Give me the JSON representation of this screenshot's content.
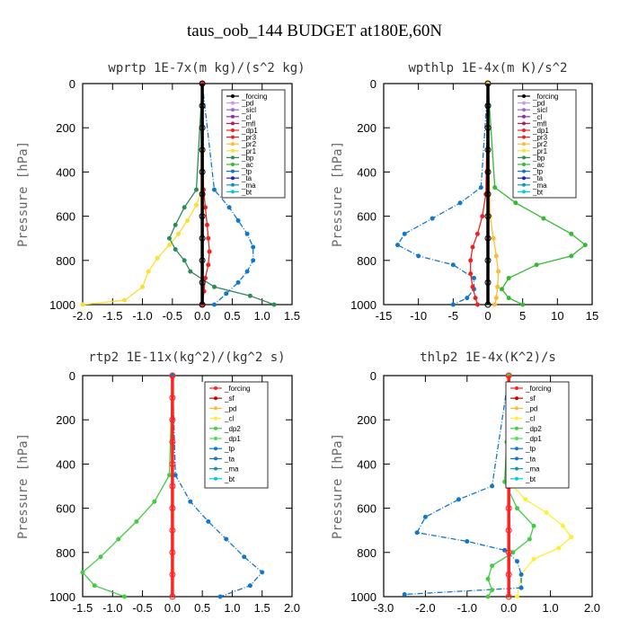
{
  "figure": {
    "title": "taus_oob_144  BUDGET at180E,60N"
  },
  "colors": {
    "forcing": "#000000",
    "pd": "#cc99dd",
    "sicl": "#9966cc",
    "cl": "#8833aa",
    "mfl": "#aa2266",
    "dp1": "#ee2222",
    "pr3": "#ee2222",
    "pr2": "#ffbb33",
    "pr1": "#ffdd33",
    "bp": "#2e8b57",
    "ac": "#33bb33",
    "tp": "#1177cc",
    "ta": "#2222cc",
    "ma": "#1199aa",
    "bt": "#00ccdd",
    "rtp2_forcing": "#ff2222",
    "rtp2_sf": "#cc0000",
    "rtp2_pd": "#ffbb33",
    "rtp2_cl": "#ffee33",
    "dp2": "#44cc44",
    "rtp2_dp1": "#55dd55",
    "rtp2_tp": "#1177cc",
    "rtp2_ta": "#1177cc",
    "rtp2_ma": "#1199aa",
    "rtp2_bt": "#00ccdd"
  },
  "chart_data": [
    {
      "type": "line",
      "title": "wprtp  1E-7x(m kg)/(s^2 kg)",
      "ylabel": "Pressure [hPa]",
      "xlim": [
        -2.0,
        1.5
      ],
      "ylim": [
        1000,
        0
      ],
      "xticks": [
        "-2.0",
        "-1.5",
        "-1.0",
        "-0.5",
        "0.0",
        "0.5",
        "1.0",
        "1.5"
      ],
      "yticks": [
        "0",
        "200",
        "400",
        "600",
        "800",
        "1000"
      ],
      "legend": [
        "_forcing",
        "_pd",
        "_sicl",
        "_cl",
        "_mfl",
        "_dp1",
        "_pr3",
        "_pr2",
        "_pr1",
        "_bp",
        "_ac",
        "_tp",
        "_ta",
        "_ma",
        "_bt"
      ],
      "legend_position": "top-right",
      "series": [
        {
          "key": "pr1",
          "x": [
            0,
            0,
            -0.1,
            -0.25,
            -0.4,
            -0.55,
            -0.75,
            -0.9,
            -1.0,
            -1.3,
            -2.0
          ],
          "y": [
            0,
            480,
            550,
            620,
            680,
            730,
            790,
            850,
            920,
            980,
            1000
          ]
        },
        {
          "key": "bp",
          "x": [
            0,
            -0.1,
            -0.3,
            -0.45,
            -0.55,
            -0.45,
            -0.3,
            -0.2,
            0.2,
            0.8,
            1.2
          ],
          "y": [
            0,
            480,
            560,
            640,
            700,
            750,
            800,
            850,
            920,
            960,
            1000
          ]
        },
        {
          "key": "tp",
          "x": [
            0,
            0.2,
            0.45,
            0.6,
            0.75,
            0.85,
            0.85,
            0.75,
            0.6,
            0.4,
            0.2
          ],
          "y": [
            0,
            480,
            560,
            620,
            680,
            740,
            800,
            850,
            900,
            950,
            1000
          ]
        },
        {
          "key": "dp1",
          "x": [
            0,
            0.02,
            0.05,
            0.08,
            0.1,
            0.12,
            0.1,
            0.05,
            0.03,
            0.0
          ],
          "y": [
            0,
            480,
            560,
            640,
            700,
            760,
            820,
            880,
            940,
            1000
          ]
        },
        {
          "key": "forcing",
          "x": [
            0,
            0,
            0,
            0,
            0,
            0,
            0,
            0,
            0,
            0,
            0
          ],
          "y": [
            0,
            100,
            200,
            300,
            400,
            500,
            600,
            700,
            800,
            900,
            1000
          ]
        }
      ]
    },
    {
      "type": "line",
      "title": "wpthlp  1E-4x(m K)/s^2",
      "ylabel": "Pressure [hPa]",
      "xlim": [
        -15,
        15
      ],
      "ylim": [
        1000,
        0
      ],
      "xticks": [
        "-15",
        "-10",
        "-5",
        "0",
        "5",
        "10",
        "15"
      ],
      "yticks": [
        "0",
        "200",
        "400",
        "600",
        "800",
        "1000"
      ],
      "legend": [
        "_forcing",
        "_pd",
        "_sicl",
        "_cl",
        "_mfl",
        "_dp1",
        "_pr3",
        "_pr2",
        "_pr1",
        "_bp",
        "_ac",
        "_tp",
        "_ta",
        "_ma",
        "_bt"
      ],
      "legend_position": "top-right",
      "series": [
        {
          "key": "ac",
          "x": [
            0,
            1,
            4,
            8,
            12,
            14,
            12,
            7,
            3,
            2,
            3,
            5
          ],
          "y": [
            0,
            470,
            540,
            610,
            680,
            730,
            780,
            820,
            880,
            930,
            970,
            1000
          ]
        },
        {
          "key": "tp",
          "x": [
            0,
            -1,
            -4,
            -8,
            -12,
            -13,
            -10,
            -5,
            -2,
            -2,
            -3,
            -5
          ],
          "y": [
            0,
            470,
            540,
            610,
            680,
            730,
            780,
            820,
            880,
            930,
            970,
            1000
          ]
        },
        {
          "key": "dp1",
          "x": [
            0,
            -0.3,
            -0.8,
            -1.5,
            -2.2,
            -2.5,
            -2.5,
            -2.2,
            -1.8,
            -1.5
          ],
          "y": [
            0,
            500,
            600,
            680,
            740,
            800,
            860,
            920,
            970,
            1000
          ]
        },
        {
          "key": "pr2",
          "x": [
            0,
            0.3,
            0.8,
            1.2,
            1.5,
            1.4,
            1.2,
            1.0
          ],
          "y": [
            0,
            600,
            700,
            780,
            850,
            920,
            970,
            1000
          ]
        },
        {
          "key": "forcing",
          "x": [
            0,
            0,
            0,
            0,
            0,
            0,
            0,
            0,
            0,
            0,
            0
          ],
          "y": [
            0,
            100,
            200,
            300,
            400,
            500,
            600,
            700,
            800,
            900,
            1000
          ]
        }
      ]
    },
    {
      "type": "line",
      "title": "rtp2  1E-11x(kg^2)/(kg^2 s)",
      "ylabel": "Pressure [hPa]",
      "xlim": [
        -1.5,
        2.0
      ],
      "ylim": [
        1000,
        0
      ],
      "xticks": [
        "-1.5",
        "-1.0",
        "-0.5",
        "0.0",
        "0.5",
        "1.0",
        "1.5",
        "2.0"
      ],
      "yticks": [
        "0",
        "200",
        "400",
        "600",
        "800",
        "1000"
      ],
      "legend": [
        "_forcing",
        "_sf",
        "_pd",
        "_cl",
        "_dp2",
        "_dp1",
        "_tp",
        "_ta",
        "_ma",
        "_bt"
      ],
      "legend_position": "top-right",
      "series": [
        {
          "key": "dp2",
          "x": [
            0,
            -0.05,
            -0.3,
            -0.6,
            -0.9,
            -1.2,
            -1.5,
            -1.3,
            -0.8
          ],
          "y": [
            0,
            450,
            570,
            660,
            740,
            820,
            890,
            950,
            1000
          ]
        },
        {
          "key": "rtp2_tp",
          "x": [
            0,
            0.05,
            0.3,
            0.6,
            0.9,
            1.2,
            1.5,
            1.3,
            0.8
          ],
          "y": [
            0,
            450,
            570,
            660,
            740,
            820,
            890,
            950,
            1000
          ]
        },
        {
          "key": "rtp2_forcing",
          "x": [
            0,
            0,
            0,
            0,
            0,
            0,
            0,
            0,
            0,
            0,
            0
          ],
          "y": [
            0,
            100,
            200,
            300,
            400,
            500,
            600,
            700,
            800,
            900,
            1000
          ]
        }
      ]
    },
    {
      "type": "line",
      "title": "thlp2  1E-4x(K^2)/s",
      "ylabel": "Pressure [hPa]",
      "xlim": [
        -3.0,
        2.0
      ],
      "ylim": [
        1000,
        0
      ],
      "xticks": [
        "-3.0",
        "-2.0",
        "-1.0",
        "0.0",
        "1.0",
        "2.0"
      ],
      "yticks": [
        "0",
        "200",
        "400",
        "600",
        "800",
        "1000"
      ],
      "legend": [
        "_forcing",
        "_sf",
        "_pd",
        "_cl",
        "_dp2",
        "_dp1",
        "_tp",
        "_ta",
        "_ma",
        "_bt"
      ],
      "legend_position": "top-right",
      "series": [
        {
          "key": "rtp2_cl",
          "x": [
            0,
            0.1,
            0.4,
            0.9,
            1.3,
            1.5,
            1.2,
            0.6,
            0.3,
            0.2
          ],
          "y": [
            0,
            500,
            560,
            620,
            680,
            730,
            780,
            830,
            900,
            1000
          ]
        },
        {
          "key": "rtp2_tp",
          "x": [
            0,
            -0.4,
            -1.2,
            -2.0,
            -2.2,
            -1.0,
            -0.1,
            0.2,
            0.3,
            0.3,
            -2.5
          ],
          "y": [
            0,
            500,
            560,
            640,
            710,
            750,
            790,
            840,
            900,
            960,
            990
          ]
        },
        {
          "key": "dp2",
          "x": [
            0,
            -0.05,
            -0.1,
            0.2,
            0.6,
            0.5,
            0.1,
            -0.4,
            -0.5,
            -0.4,
            -0.5
          ],
          "y": [
            0,
            300,
            480,
            600,
            680,
            740,
            800,
            860,
            920,
            970,
            1000
          ]
        },
        {
          "key": "rtp2_forcing",
          "x": [
            0,
            0,
            0,
            0,
            0,
            0,
            0,
            0,
            0,
            0,
            0
          ],
          "y": [
            0,
            100,
            200,
            300,
            400,
            500,
            600,
            700,
            800,
            900,
            1000
          ]
        }
      ]
    }
  ]
}
